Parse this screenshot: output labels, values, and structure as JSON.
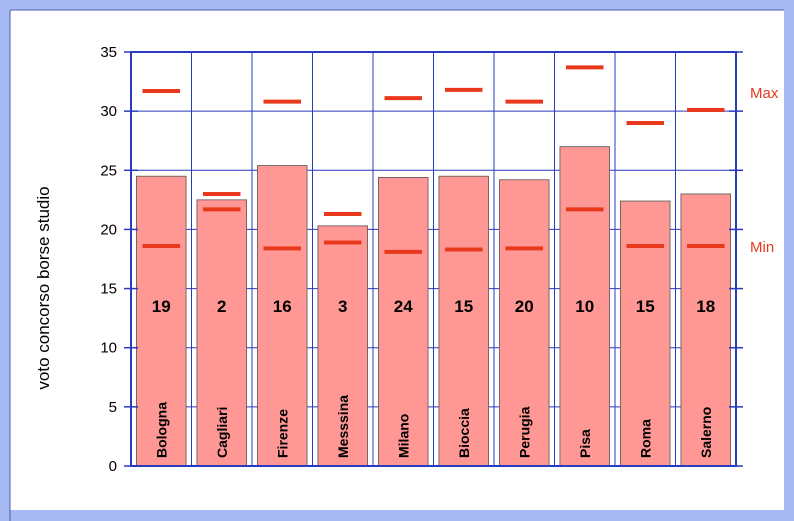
{
  "chart_data": {
    "type": "bar",
    "ylabel": "voto concorso borse studio",
    "ylim": [
      0,
      35
    ],
    "yticks": [
      0,
      5,
      10,
      15,
      20,
      25,
      30,
      35
    ],
    "grid": true,
    "categories": [
      "Bologna",
      "Cagliari",
      "Firenze",
      "Messsina",
      "Milano",
      "Bioccia",
      "Perugia",
      "Pisa",
      "Roma",
      "Salerno"
    ],
    "values": [
      24.5,
      22.5,
      25.4,
      20.3,
      24.4,
      24.5,
      24.2,
      27.0,
      22.4,
      23.0
    ],
    "counts": [
      "19",
      "2",
      "16",
      "3",
      "24",
      "15",
      "20",
      "10",
      "15",
      "18"
    ],
    "max": [
      31.7,
      23.0,
      30.8,
      21.3,
      31.1,
      31.8,
      30.8,
      33.7,
      29.0,
      30.1
    ],
    "min": [
      18.6,
      21.7,
      18.4,
      18.9,
      18.1,
      18.3,
      18.4,
      21.7,
      18.6,
      18.6
    ],
    "legend": {
      "max_label": "Max",
      "min_label": "Min"
    },
    "colors": {
      "bar": "#ff9794",
      "bar_stroke": "#555555",
      "marker": "#e8391d",
      "grid": "#2a3bbf",
      "frame_band": "#a8baf4"
    }
  }
}
